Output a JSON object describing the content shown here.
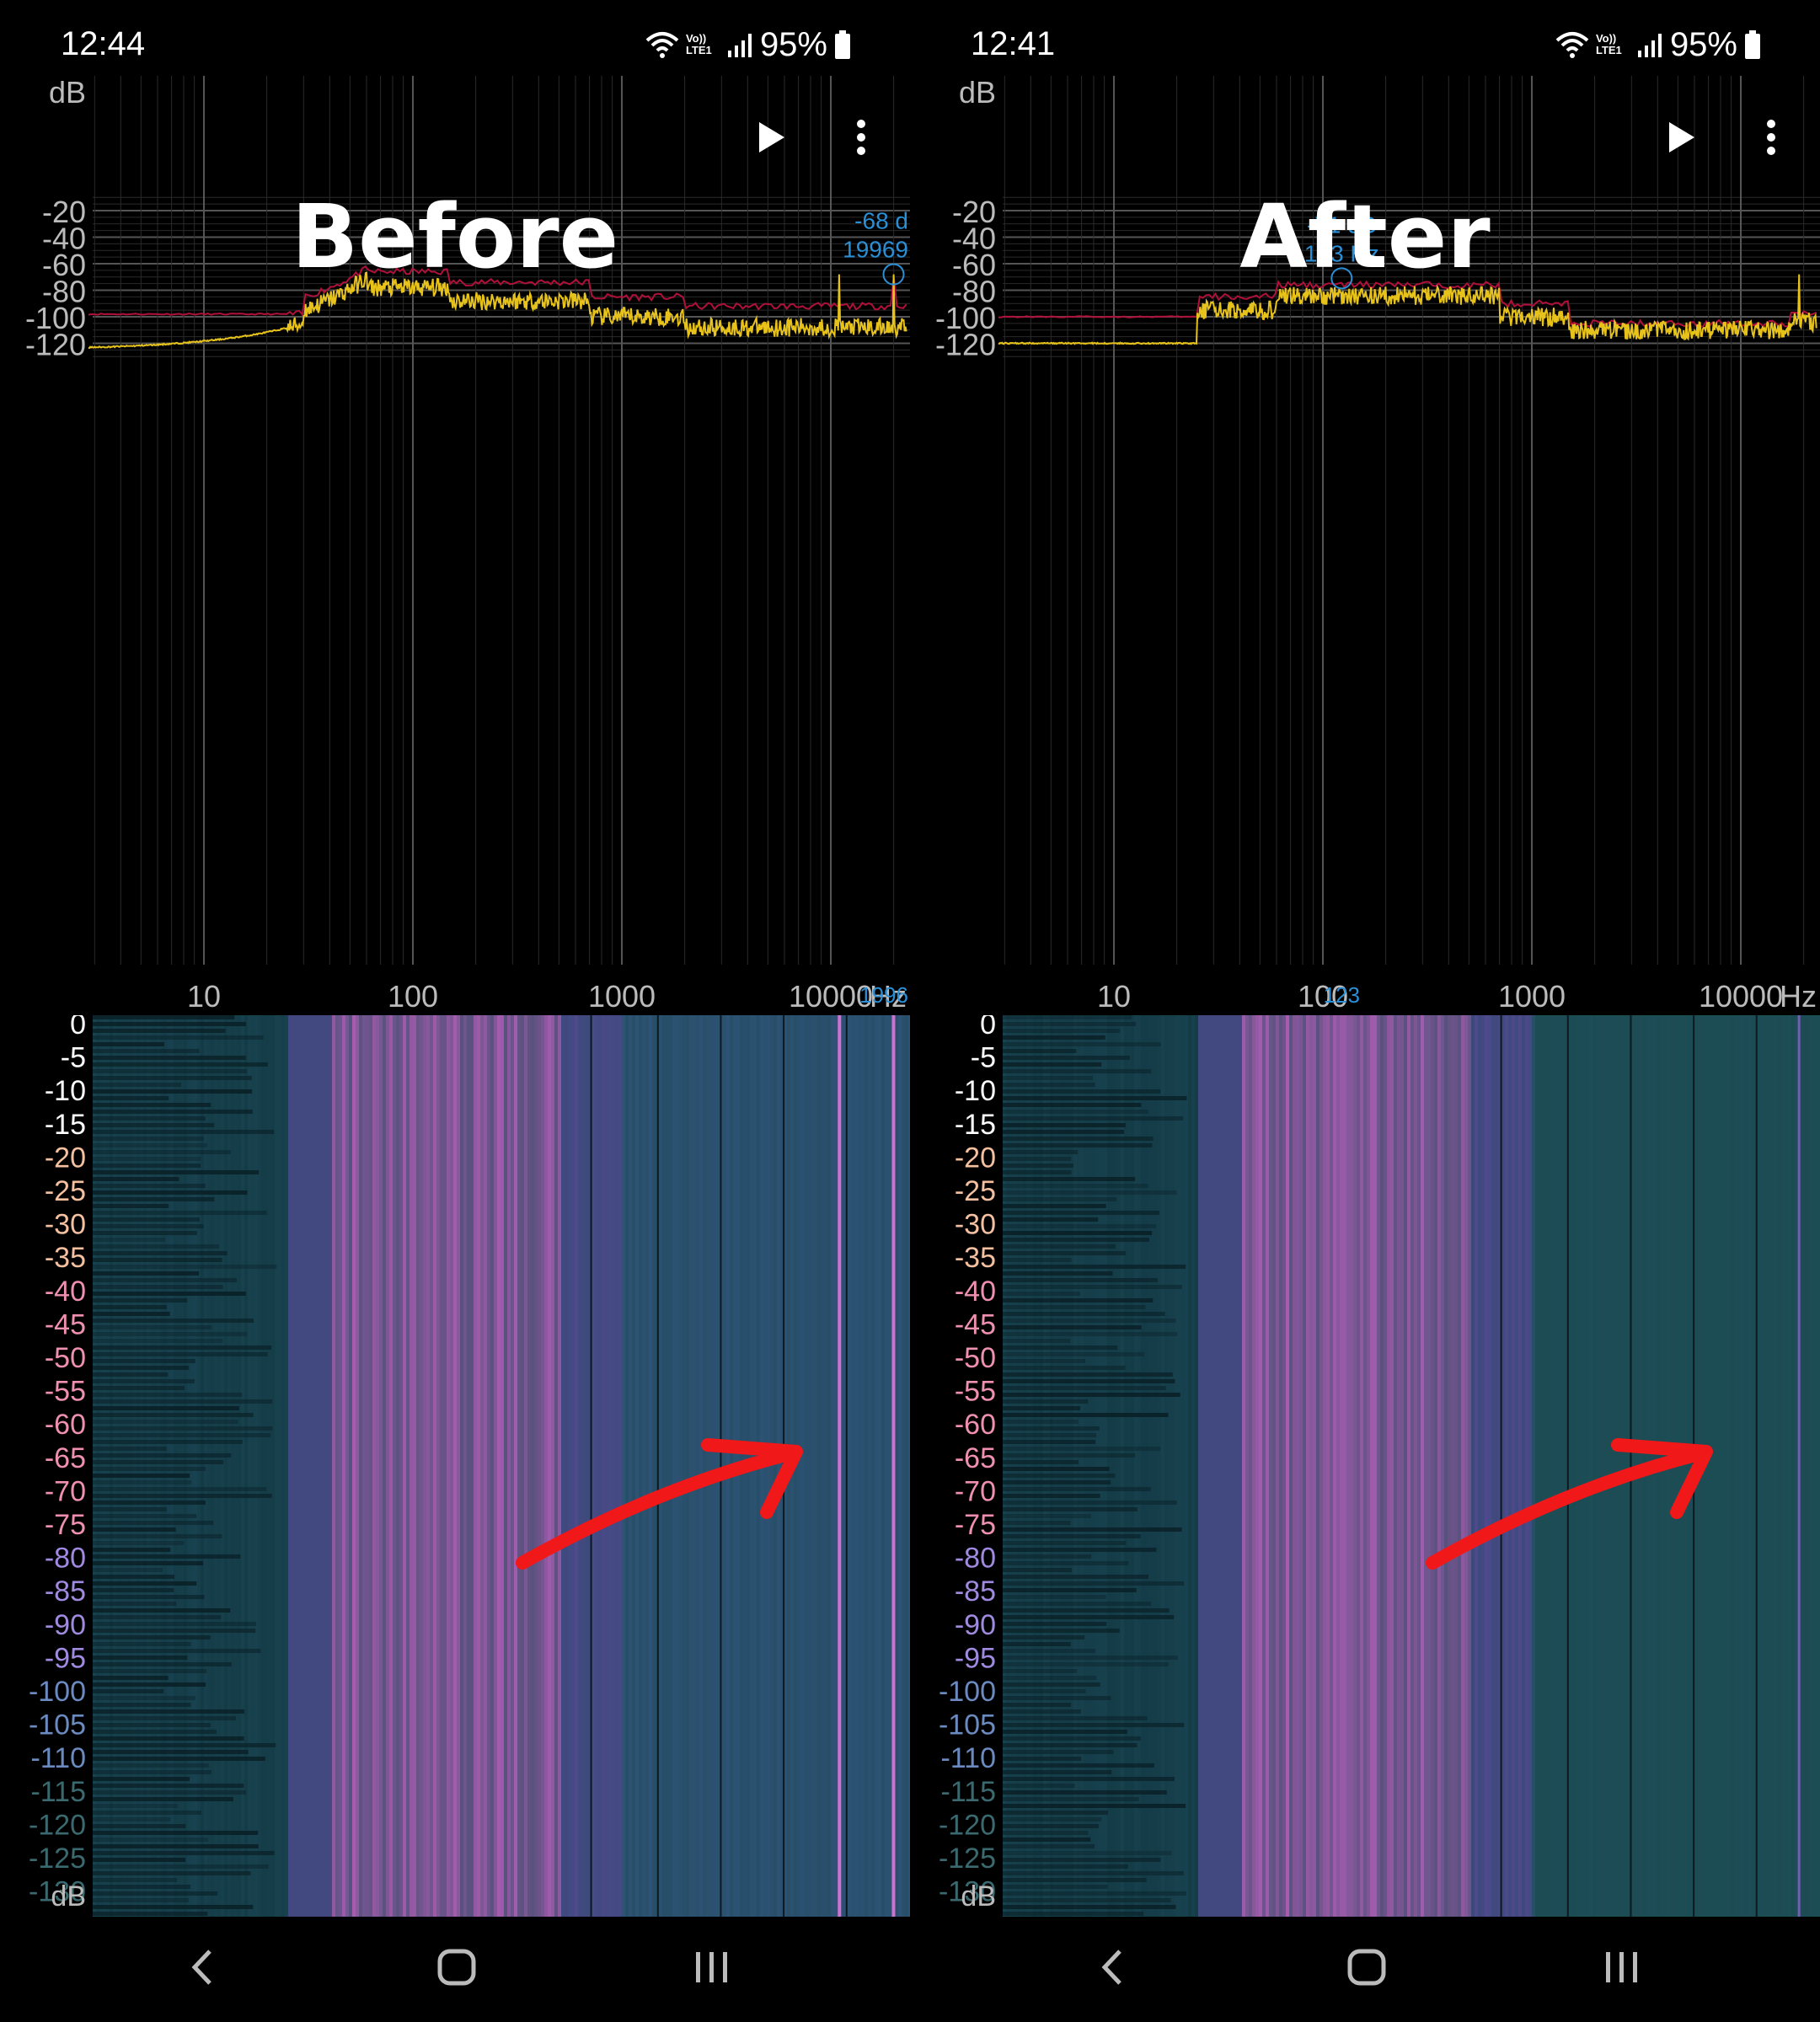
{
  "panels": [
    {
      "id": "before",
      "status": {
        "time": "12:44",
        "battery": "95%",
        "net_label": "Vo)) LTE1"
      },
      "overlay_title": "Before",
      "peak": {
        "db_label": "-68 d",
        "freq_label": "19969",
        "axis_marker": "1996"
      },
      "red_spikes": [
        11000,
        19969
      ]
    },
    {
      "id": "after",
      "status": {
        "time": "12:41",
        "battery": "95%",
        "net_label": "Vo)) LTE1"
      },
      "overlay_title": "After",
      "peak": {
        "db_label": "-71 dB",
        "freq_label": "123 Hz",
        "axis_marker": "123"
      },
      "red_spikes": [
        19000
      ]
    }
  ],
  "spectrum_axis": {
    "unit_y": "dB",
    "y_ticks": [
      "-20",
      "-40",
      "-60",
      "-80",
      "-100",
      "-120"
    ],
    "x_ticks": [
      "10",
      "100",
      "1000",
      "10000"
    ],
    "unit_x": "Hz"
  },
  "spectrogram_axis": {
    "ticks": [
      "0",
      "-5",
      "-10",
      "-15",
      "-20",
      "-25",
      "-30",
      "-35",
      "-40",
      "-45",
      "-50",
      "-55",
      "-60",
      "-65",
      "-70",
      "-75",
      "-80",
      "-85",
      "-90",
      "-95",
      "-100",
      "-105",
      "-110",
      "-115",
      "-120",
      "-125",
      "-130"
    ],
    "unit": "dB"
  },
  "icons": {
    "play": "play-icon",
    "menu": "more-vert-icon",
    "back": "back-icon",
    "home": "home-icon",
    "recents": "recents-icon",
    "wifi": "wifi-icon",
    "signal": "signal-icon",
    "battery": "battery-icon",
    "arrow": "red-arrow-annotation"
  },
  "colors": {
    "spectrum_yellow": "#e6c21a",
    "spectrum_red": "#b0103a",
    "peak_label": "#2b8fd6",
    "grid": "#3a3a3a",
    "spectrogram_bg": "#1f4a5a",
    "spectrogram_mid": "#5a4a9a",
    "spectrogram_hot": "#c060c0",
    "arrow": "#f01818"
  }
}
